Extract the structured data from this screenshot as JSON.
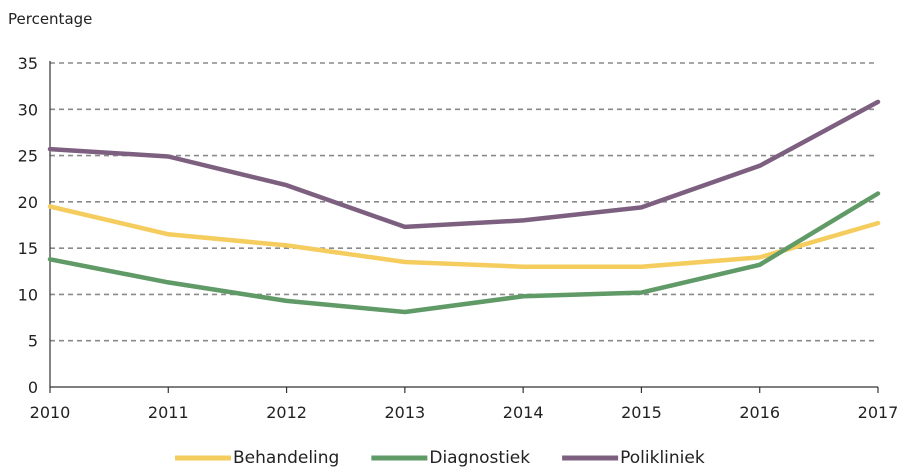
{
  "chart_data": {
    "type": "line",
    "ylabel": "Percentage",
    "x": [
      "2010",
      "2011",
      "2012",
      "2013",
      "2014",
      "2015",
      "2016",
      "2017"
    ],
    "ylim": [
      0,
      35
    ],
    "yticks": [
      0,
      5,
      10,
      15,
      20,
      25,
      30,
      35
    ],
    "grid": true,
    "legend_position": "bottom",
    "series": [
      {
        "name": "Behandeling",
        "color": "#f5cc5e",
        "values": [
          19.5,
          16.5,
          15.3,
          13.5,
          13.0,
          13.0,
          14.0,
          17.7
        ]
      },
      {
        "name": "Diagnostiek",
        "color": "#5f9a67",
        "values": [
          13.8,
          11.3,
          9.3,
          8.1,
          9.8,
          10.2,
          13.2,
          20.9
        ]
      },
      {
        "name": "Polikliniek",
        "color": "#7d6080",
        "values": [
          25.7,
          24.9,
          21.8,
          17.3,
          18.0,
          19.4,
          23.9,
          30.8
        ]
      }
    ]
  }
}
